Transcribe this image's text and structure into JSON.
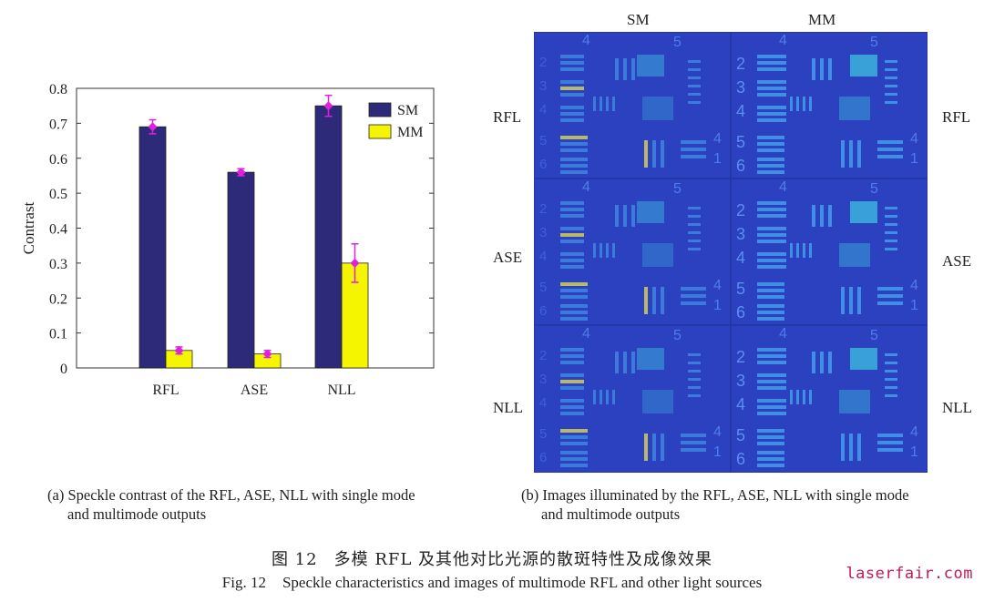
{
  "chart_data": {
    "type": "bar",
    "categories": [
      "RFL",
      "ASE",
      "NLL"
    ],
    "series": [
      {
        "name": "SM",
        "color": "#2e2a7a",
        "values": [
          0.69,
          0.56,
          0.75
        ],
        "errors": [
          0.02,
          0.01,
          0.03
        ]
      },
      {
        "name": "MM",
        "color": "#f5f500",
        "values": [
          0.05,
          0.04,
          0.3
        ],
        "errors": [
          0.01,
          0.01,
          0.055
        ]
      }
    ],
    "ylabel": "Contrast",
    "xlabel": "",
    "ylim": [
      0,
      0.8
    ],
    "yticks": [
      "0",
      "0.1",
      "0.2",
      "0.3",
      "0.4",
      "0.5",
      "0.6",
      "0.7",
      "0.8"
    ],
    "legend_position": "top-right",
    "errorbar_color": "#e020e0"
  },
  "imaging": {
    "columns": [
      "SM",
      "MM"
    ],
    "rows": [
      "RFL",
      "ASE",
      "NLL"
    ],
    "group_numbers": {
      "top_left": "4",
      "top_right": "5",
      "side": [
        "2",
        "3",
        "4",
        "5",
        "6"
      ],
      "right_side": [
        "4",
        "1"
      ]
    }
  },
  "captions": {
    "a_line1": "(a) Speckle contrast of the RFL, ASE, NLL with single mode",
    "a_line2": "and multimode outputs",
    "b_line1": "(b) Images illuminated by the RFL, ASE, NLL with single mode",
    "b_line2": "and multimode outputs"
  },
  "figure": {
    "cn_num": "图 12",
    "cn_title": "多模 RFL 及其他对比光源的散斑特性及成像效果",
    "en_num": "Fig. 12",
    "en_title": "Speckle characteristics and images of multimode RFL and other light sources"
  },
  "watermark": "laserfair.com"
}
